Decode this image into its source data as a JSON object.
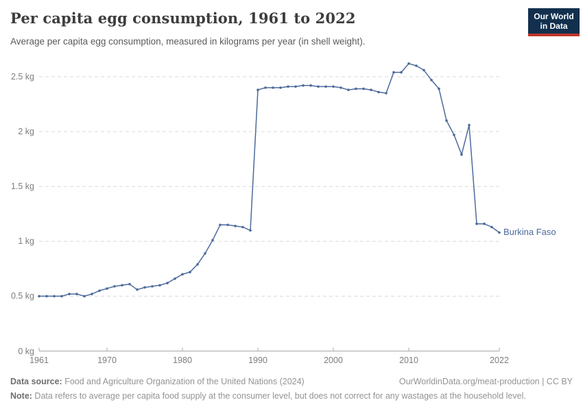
{
  "header": {
    "title": "Per capita egg consumption, 1961 to 2022",
    "subtitle": "Average per capita egg consumption, measured in kilograms per year (in shell weight).",
    "logo": {
      "line1": "Our World",
      "line2": "in Data"
    }
  },
  "chart_data": {
    "type": "line",
    "title": "Per capita egg consumption, 1961 to 2022",
    "ylabel": "kilograms per year (in shell weight)",
    "xlabel": "",
    "grid": "horizontal-dashed",
    "legend_position": "end-of-line-label",
    "xlim": [
      1961,
      2022
    ],
    "ylim": [
      0,
      2.65
    ],
    "x_ticks": [
      1961,
      1970,
      1980,
      1990,
      2000,
      2010,
      2022
    ],
    "y_ticks": [
      {
        "value": 0,
        "label": "0 kg"
      },
      {
        "value": 0.5,
        "label": "0.5 kg"
      },
      {
        "value": 1,
        "label": "1 kg"
      },
      {
        "value": 1.5,
        "label": "1.5 kg"
      },
      {
        "value": 2,
        "label": "2 kg"
      },
      {
        "value": 2.5,
        "label": "2.5 kg"
      }
    ],
    "end_label": "Burkina Faso",
    "series": [
      {
        "name": "Burkina Faso",
        "color": "#4c6a9c",
        "x": [
          1961,
          1962,
          1963,
          1964,
          1965,
          1966,
          1967,
          1968,
          1969,
          1970,
          1971,
          1972,
          1973,
          1974,
          1975,
          1976,
          1977,
          1978,
          1979,
          1980,
          1981,
          1982,
          1983,
          1984,
          1985,
          1986,
          1987,
          1988,
          1989,
          1990,
          1991,
          1992,
          1993,
          1994,
          1995,
          1996,
          1997,
          1998,
          1999,
          2000,
          2001,
          2002,
          2003,
          2004,
          2005,
          2006,
          2007,
          2008,
          2009,
          2010,
          2011,
          2012,
          2013,
          2014,
          2015,
          2016,
          2017,
          2018,
          2019,
          2020,
          2021,
          2022
        ],
        "values": [
          0.5,
          0.5,
          0.5,
          0.5,
          0.52,
          0.52,
          0.5,
          0.52,
          0.55,
          0.57,
          0.59,
          0.6,
          0.61,
          0.56,
          0.58,
          0.59,
          0.6,
          0.62,
          0.66,
          0.7,
          0.72,
          0.79,
          0.89,
          1.01,
          1.15,
          1.15,
          1.14,
          1.13,
          1.1,
          2.38,
          2.4,
          2.4,
          2.4,
          2.41,
          2.41,
          2.42,
          2.42,
          2.41,
          2.41,
          2.41,
          2.4,
          2.38,
          2.39,
          2.39,
          2.38,
          2.36,
          2.35,
          2.54,
          2.54,
          2.62,
          2.6,
          2.56,
          2.47,
          2.39,
          2.1,
          1.97,
          1.79,
          2.06,
          1.16,
          1.16,
          1.13,
          1.08
        ]
      }
    ]
  },
  "footer": {
    "source_label": "Data source:",
    "source_text": " Food and Agriculture Organization of the United Nations (2024)",
    "credit": "OurWorldinData.org/meat-production | CC BY",
    "note_label": "Note:",
    "note_text": " Data refers to average per capita food supply at the consumer level, but does not correct for any wastages at the household level."
  },
  "colors": {
    "line": "#4c6a9c",
    "grid": "#d9d9d9",
    "axis": "#a9a9a9",
    "tick_text": "#7d7d7d",
    "logo_bg": "#12304e",
    "logo_accent": "#bf3529"
  }
}
